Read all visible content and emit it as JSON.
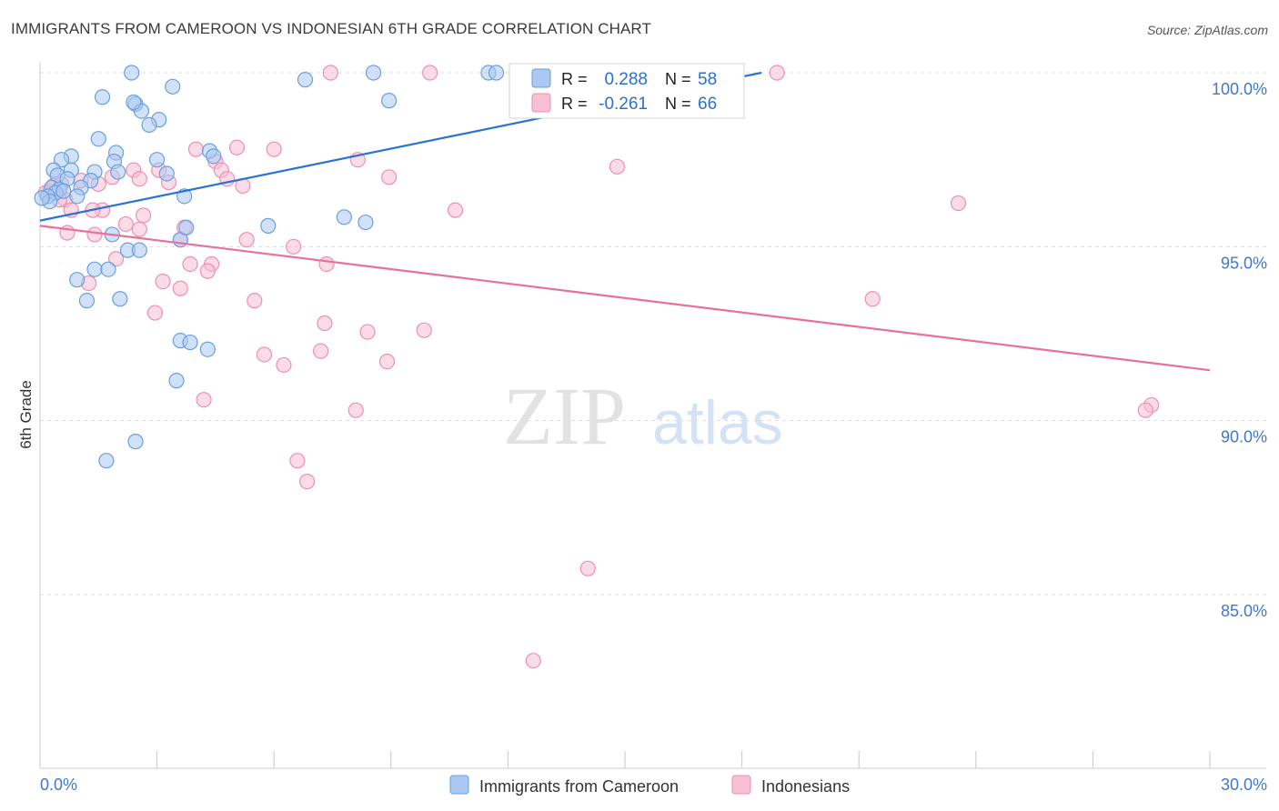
{
  "title": "IMMIGRANTS FROM CAMEROON VS INDONESIAN 6TH GRADE CORRELATION CHART",
  "source": "Source: ZipAtlas.com",
  "watermark": {
    "zip": "ZIP",
    "atlas": "atlas"
  },
  "colors": {
    "blue": "#6a9fe0",
    "blue_fill": "#aac8f2",
    "blue_line": "#2b72d6",
    "pink": "#ee8fb0",
    "pink_fill": "#f7bfd2",
    "pink_line": "#e8719c",
    "tick_label": "#3f78cc",
    "grid": "#dddddd"
  },
  "legend_box": {
    "rows": [
      {
        "r_label": "R =",
        "r_value": "0.288",
        "n_label": "N =",
        "n_value": "58"
      },
      {
        "r_label": "R =",
        "r_value": "-0.261",
        "n_label": "N =",
        "n_value": "66"
      }
    ]
  },
  "chart_data": {
    "type": "scatter",
    "title": "IMMIGRANTS FROM CAMEROON VS INDONESIAN 6TH GRADE CORRELATION CHART",
    "xlabel": "",
    "ylabel": "6th Grade",
    "xlim": [
      0,
      30
    ],
    "ylim": [
      80.0,
      100.8
    ],
    "x_ticks": [
      0,
      3,
      6,
      9,
      12,
      15,
      18,
      21,
      24,
      27,
      30
    ],
    "x_tick_labels": {
      "0": "0.0%",
      "30": "30.0%"
    },
    "y_ticks": [
      85,
      90,
      95,
      100
    ],
    "y_tick_labels": [
      "85.0%",
      "90.0%",
      "95.0%",
      "100.0%"
    ],
    "grid": true,
    "legend_position": "bottom",
    "series": [
      {
        "name": "Immigrants from Cameroon",
        "color": "blue",
        "r": 0.288,
        "n": 58,
        "trend": {
          "x": [
            0,
            18.5
          ],
          "y": [
            95.75,
            100.0
          ]
        },
        "points": [
          [
            2.35,
            100
          ],
          [
            6.8,
            99.8
          ],
          [
            8.55,
            100
          ],
          [
            11.5,
            100
          ],
          [
            11.7,
            100
          ],
          [
            1.6,
            99.3
          ],
          [
            2.45,
            99.1
          ],
          [
            2.6,
            98.9
          ],
          [
            3.05,
            98.65
          ],
          [
            2.8,
            98.5
          ],
          [
            3.4,
            99.6
          ],
          [
            8.95,
            99.2
          ],
          [
            1.5,
            98.1
          ],
          [
            1.95,
            97.7
          ],
          [
            0.8,
            97.6
          ],
          [
            0.55,
            97.5
          ],
          [
            1.9,
            97.45
          ],
          [
            3.0,
            97.5
          ],
          [
            4.35,
            97.75
          ],
          [
            4.45,
            97.6
          ],
          [
            0.35,
            97.2
          ],
          [
            0.8,
            97.2
          ],
          [
            0.45,
            97.05
          ],
          [
            1.4,
            97.15
          ],
          [
            2.0,
            97.15
          ],
          [
            3.25,
            97.1
          ],
          [
            0.7,
            96.95
          ],
          [
            1.3,
            96.9
          ],
          [
            0.3,
            96.7
          ],
          [
            0.5,
            96.65
          ],
          [
            0.4,
            96.55
          ],
          [
            0.6,
            96.6
          ],
          [
            1.05,
            96.7
          ],
          [
            0.95,
            96.45
          ],
          [
            0.2,
            96.45
          ],
          [
            3.7,
            96.45
          ],
          [
            0.25,
            96.3
          ],
          [
            0.05,
            96.4
          ],
          [
            1.85,
            95.35
          ],
          [
            3.6,
            95.2
          ],
          [
            5.85,
            95.6
          ],
          [
            7.8,
            95.85
          ],
          [
            8.35,
            95.7
          ],
          [
            3.75,
            95.55
          ],
          [
            2.25,
            94.9
          ],
          [
            2.55,
            94.9
          ],
          [
            1.4,
            94.35
          ],
          [
            1.75,
            94.35
          ],
          [
            0.95,
            94.05
          ],
          [
            1.2,
            93.45
          ],
          [
            2.05,
            93.5
          ],
          [
            3.6,
            92.3
          ],
          [
            3.85,
            92.25
          ],
          [
            4.3,
            92.05
          ],
          [
            3.5,
            91.15
          ],
          [
            2.45,
            89.4
          ],
          [
            1.7,
            88.85
          ],
          [
            2.4,
            99.15
          ]
        ]
      },
      {
        "name": "Indonesians",
        "color": "pink",
        "r": -0.261,
        "n": 66,
        "trend": {
          "x": [
            0,
            30
          ],
          "y": [
            95.6,
            91.45
          ]
        },
        "points": [
          [
            7.45,
            100
          ],
          [
            10.0,
            100
          ],
          [
            18.9,
            100
          ],
          [
            0.25,
            96.6
          ],
          [
            0.55,
            96.8
          ],
          [
            1.05,
            96.9
          ],
          [
            0.65,
            96.35
          ],
          [
            0.8,
            96.05
          ],
          [
            1.6,
            96.05
          ],
          [
            1.85,
            97.0
          ],
          [
            2.4,
            97.2
          ],
          [
            3.05,
            97.2
          ],
          [
            2.55,
            96.95
          ],
          [
            3.3,
            96.85
          ],
          [
            4.0,
            97.8
          ],
          [
            4.5,
            97.45
          ],
          [
            5.05,
            97.85
          ],
          [
            6.0,
            97.8
          ],
          [
            4.65,
            97.2
          ],
          [
            4.8,
            96.95
          ],
          [
            5.2,
            96.75
          ],
          [
            1.35,
            96.05
          ],
          [
            2.2,
            95.65
          ],
          [
            2.55,
            95.5
          ],
          [
            2.65,
            95.9
          ],
          [
            3.7,
            95.55
          ],
          [
            0.7,
            95.4
          ],
          [
            1.4,
            95.35
          ],
          [
            3.6,
            95.2
          ],
          [
            5.3,
            95.2
          ],
          [
            6.5,
            95.0
          ],
          [
            1.95,
            94.65
          ],
          [
            3.85,
            94.5
          ],
          [
            4.4,
            94.5
          ],
          [
            7.35,
            94.5
          ],
          [
            4.3,
            94.3
          ],
          [
            3.15,
            94.0
          ],
          [
            3.6,
            93.8
          ],
          [
            1.25,
            93.95
          ],
          [
            5.5,
            93.45
          ],
          [
            2.95,
            93.1
          ],
          [
            7.3,
            92.8
          ],
          [
            8.4,
            92.55
          ],
          [
            9.85,
            92.6
          ],
          [
            5.75,
            91.9
          ],
          [
            6.25,
            91.6
          ],
          [
            7.2,
            92.0
          ],
          [
            8.9,
            91.7
          ],
          [
            4.2,
            90.6
          ],
          [
            8.1,
            90.3
          ],
          [
            6.6,
            88.85
          ],
          [
            6.85,
            88.25
          ],
          [
            14.05,
            85.75
          ],
          [
            12.65,
            83.1
          ],
          [
            28.5,
            90.45
          ],
          [
            28.35,
            90.3
          ],
          [
            14.8,
            97.3
          ],
          [
            10.65,
            96.05
          ],
          [
            8.15,
            97.5
          ],
          [
            8.95,
            97.0
          ],
          [
            21.35,
            93.5
          ],
          [
            23.55,
            96.25
          ],
          [
            0.35,
            96.75
          ],
          [
            0.15,
            96.55
          ],
          [
            1.5,
            96.8
          ],
          [
            0.5,
            96.35
          ]
        ]
      }
    ]
  }
}
